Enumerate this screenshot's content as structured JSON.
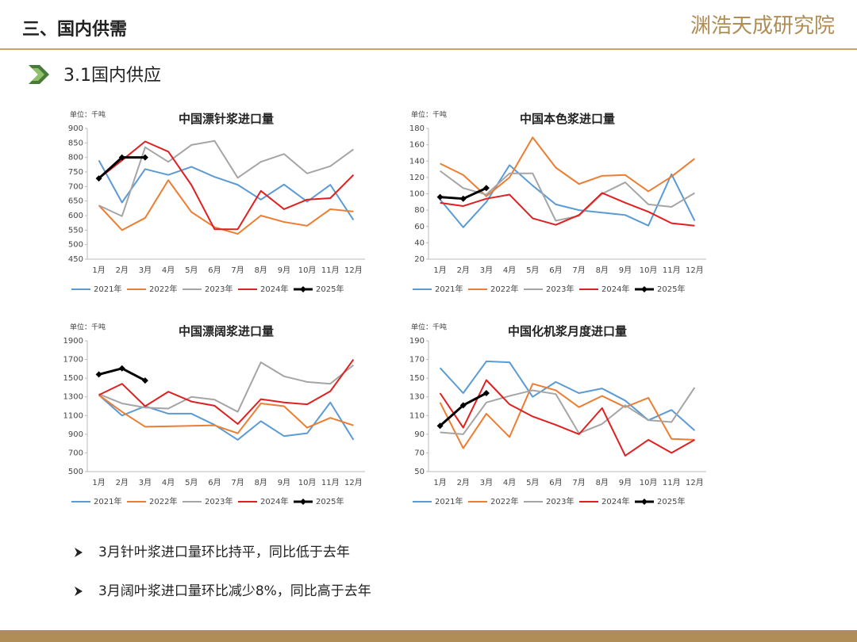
{
  "header": {
    "title": "三、国内供需",
    "logo": "渊浩天成研究院"
  },
  "section": "3.1国内供应",
  "chart_data": [
    {
      "type": "line",
      "title": "中国漂针浆进口量",
      "unit": "单位：千吨",
      "categories": [
        "1月",
        "2月",
        "3月",
        "4月",
        "5月",
        "6月",
        "7月",
        "8月",
        "9月",
        "10月",
        "11月",
        "12月"
      ],
      "ylim": [
        450,
        900
      ],
      "yticks": [
        450,
        500,
        550,
        600,
        650,
        700,
        750,
        800,
        850,
        900
      ],
      "series": [
        {
          "name": "2021年",
          "color": "#5b9bd5",
          "values": [
            790,
            645,
            760,
            740,
            768,
            733,
            706,
            655,
            707,
            648,
            706,
            585
          ]
        },
        {
          "name": "2022年",
          "color": "#ed7d31",
          "values": [
            635,
            550,
            592,
            722,
            612,
            560,
            537,
            600,
            578,
            565,
            622,
            614
          ]
        },
        {
          "name": "2023年",
          "color": "#a5a5a5",
          "values": [
            635,
            598,
            835,
            785,
            843,
            857,
            730,
            785,
            812,
            745,
            770,
            828
          ]
        },
        {
          "name": "2024年",
          "color": "#e02020",
          "values": [
            728,
            790,
            855,
            820,
            705,
            553,
            553,
            685,
            622,
            655,
            660,
            740
          ]
        },
        {
          "name": "2025年",
          "color": "#000000",
          "values": [
            728,
            800,
            800,
            null,
            null,
            null,
            null,
            null,
            null,
            null,
            null,
            null
          ]
        }
      ]
    },
    {
      "type": "line",
      "title": "中国本色浆进口量",
      "unit": "单位：千吨",
      "categories": [
        "1月",
        "2月",
        "3月",
        "4月",
        "5月",
        "6月",
        "7月",
        "8月",
        "9月",
        "10月",
        "11月",
        "12月"
      ],
      "ylim": [
        20,
        180
      ],
      "yticks": [
        20,
        40,
        60,
        80,
        100,
        120,
        140,
        160,
        180
      ],
      "series": [
        {
          "name": "2021年",
          "color": "#5b9bd5",
          "values": [
            93,
            59,
            90,
            135,
            110,
            87,
            80,
            77,
            74,
            61,
            124,
            67
          ]
        },
        {
          "name": "2022年",
          "color": "#ed7d31",
          "values": [
            137,
            123,
            97,
            120,
            169,
            132,
            112,
            122,
            123,
            103,
            121,
            143
          ]
        },
        {
          "name": "2023年",
          "color": "#a5a5a5",
          "values": [
            128,
            107,
            99,
            125,
            125,
            67,
            73,
            100,
            114,
            87,
            84,
            101
          ]
        },
        {
          "name": "2024年",
          "color": "#e02020",
          "values": [
            89,
            85,
            94,
            99,
            70,
            62,
            74,
            101,
            89,
            78,
            64,
            61
          ]
        },
        {
          "name": "2025年",
          "color": "#000000",
          "values": [
            96,
            94,
            107,
            null,
            null,
            null,
            null,
            null,
            null,
            null,
            null,
            null
          ]
        }
      ]
    },
    {
      "type": "line",
      "title": "中国漂阔浆进口量",
      "unit": "单位：千吨",
      "categories": [
        "1月",
        "2月",
        "3月",
        "4月",
        "5月",
        "6月",
        "7月",
        "8月",
        "9月",
        "10月",
        "11月",
        "12月"
      ],
      "ylim": [
        500,
        1900
      ],
      "yticks": [
        500,
        700,
        900,
        1100,
        1300,
        1500,
        1700,
        1900
      ],
      "series": [
        {
          "name": "2021年",
          "color": "#5b9bd5",
          "values": [
            1320,
            1100,
            1200,
            1120,
            1120,
            1000,
            840,
            1040,
            880,
            910,
            1240,
            840
          ]
        },
        {
          "name": "2022年",
          "color": "#ed7d31",
          "values": [
            1320,
            1140,
            980,
            985,
            990,
            995,
            910,
            1230,
            1200,
            970,
            1075,
            995
          ]
        },
        {
          "name": "2023年",
          "color": "#a5a5a5",
          "values": [
            1330,
            1230,
            1185,
            1175,
            1300,
            1270,
            1140,
            1670,
            1520,
            1460,
            1440,
            1640
          ]
        },
        {
          "name": "2024年",
          "color": "#e02020",
          "values": [
            1320,
            1440,
            1200,
            1355,
            1250,
            1205,
            1010,
            1275,
            1240,
            1220,
            1360,
            1700
          ]
        },
        {
          "name": "2025年",
          "color": "#000000",
          "values": [
            1540,
            1605,
            1475,
            null,
            null,
            null,
            null,
            null,
            null,
            null,
            null,
            null
          ]
        }
      ]
    },
    {
      "type": "line",
      "title": "中国化机浆月度进口量",
      "unit": "单位：千吨",
      "categories": [
        "1月",
        "2月",
        "3月",
        "4月",
        "5月",
        "6月",
        "7月",
        "8月",
        "9月",
        "10月",
        "11月",
        "12月"
      ],
      "ylim": [
        50,
        190
      ],
      "yticks": [
        50,
        70,
        90,
        110,
        130,
        150,
        170,
        190
      ],
      "series": [
        {
          "name": "2021年",
          "color": "#5b9bd5",
          "values": [
            161,
            134,
            168,
            167,
            130,
            146,
            134,
            139,
            126,
            105,
            116,
            94
          ]
        },
        {
          "name": "2022年",
          "color": "#ed7d31",
          "values": [
            124,
            75,
            112,
            87,
            144,
            137,
            119,
            131,
            119,
            129,
            85,
            84
          ]
        },
        {
          "name": "2023年",
          "color": "#a5a5a5",
          "values": [
            92,
            90,
            124,
            131,
            137,
            133,
            91,
            101,
            121,
            105,
            103,
            140
          ]
        },
        {
          "name": "2024年",
          "color": "#e02020",
          "values": [
            134,
            97,
            148,
            122,
            109,
            100,
            90,
            118,
            67,
            84,
            70,
            84
          ]
        },
        {
          "name": "2025年",
          "color": "#000000",
          "values": [
            99,
            121,
            134,
            null,
            null,
            null,
            null,
            null,
            null,
            null,
            null,
            null
          ]
        }
      ]
    }
  ],
  "bullets": [
    "3月针叶浆进口量环比持平，同比低于去年",
    "3月阔叶浆进口量环比减少8%，同比高于去年"
  ]
}
